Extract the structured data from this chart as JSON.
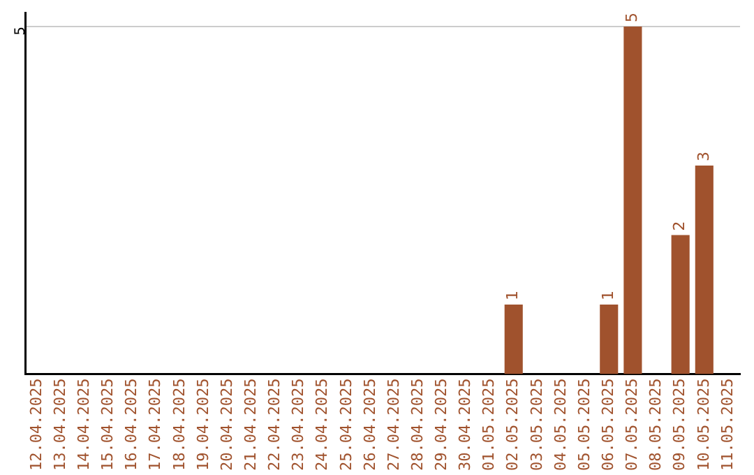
{
  "chart_data": {
    "type": "bar",
    "categories": [
      "12.04.2025",
      "13.04.2025",
      "14.04.2025",
      "15.04.2025",
      "16.04.2025",
      "17.04.2025",
      "18.04.2025",
      "19.04.2025",
      "20.04.2025",
      "21.04.2025",
      "22.04.2025",
      "23.04.2025",
      "24.04.2025",
      "25.04.2025",
      "26.04.2025",
      "27.04.2025",
      "28.04.2025",
      "29.04.2025",
      "30.04.2025",
      "01.05.2025",
      "02.05.2025",
      "03.05.2025",
      "04.05.2025",
      "05.05.2025",
      "06.05.2025",
      "07.05.2025",
      "08.05.2025",
      "09.05.2025",
      "10.05.2025",
      "11.05.2025"
    ],
    "values": [
      null,
      null,
      null,
      null,
      null,
      null,
      null,
      null,
      null,
      null,
      null,
      null,
      null,
      null,
      null,
      null,
      null,
      null,
      null,
      null,
      1,
      null,
      null,
      null,
      1,
      5,
      null,
      2,
      3,
      null
    ],
    "data_labels": true,
    "color": "#a0522d",
    "ylim": [
      0,
      5.2
    ],
    "yticks": [
      5
    ],
    "grid": "y",
    "legend": false
  }
}
